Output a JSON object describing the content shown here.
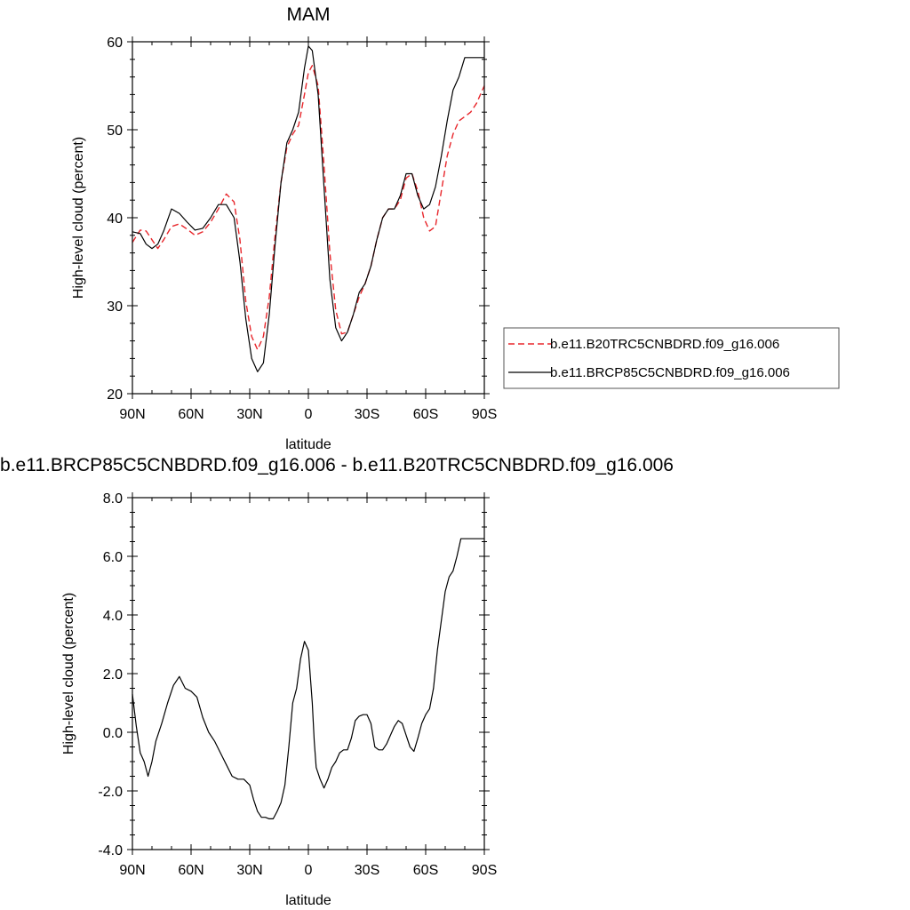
{
  "chart_data": [
    {
      "type": "line",
      "title": "MAM",
      "xlabel": "latitude",
      "ylabel": "High-level cloud (percent)",
      "xlim": [
        -90,
        90
      ],
      "ylim": [
        20,
        60
      ],
      "x_ticks": [
        {
          "value": -90,
          "label": "90N"
        },
        {
          "value": -60,
          "label": "60N"
        },
        {
          "value": -30,
          "label": "30N"
        },
        {
          "value": 0,
          "label": "0"
        },
        {
          "value": 30,
          "label": "30S"
        },
        {
          "value": 60,
          "label": "60S"
        },
        {
          "value": 90,
          "label": "90S"
        }
      ],
      "y_ticks": [
        {
          "value": 20,
          "label": "20"
        },
        {
          "value": 30,
          "label": "30"
        },
        {
          "value": 40,
          "label": "40"
        },
        {
          "value": 50,
          "label": "50"
        },
        {
          "value": 60,
          "label": "60"
        }
      ],
      "legend": "outside-right",
      "series": [
        {
          "name": "b.e11.B20TRC5CNBDRD.f09_g16.006",
          "color": "#e8262b",
          "style": "dashed",
          "x": [
            -90,
            -86,
            -83,
            -80,
            -77,
            -74,
            -70,
            -66,
            -62,
            -58,
            -54,
            -50,
            -46,
            -42,
            -38,
            -35,
            -32,
            -29,
            -26,
            -23,
            -20,
            -17,
            -14,
            -11,
            -8,
            -5,
            -2,
            0,
            2,
            5,
            8,
            11,
            14,
            17,
            20,
            23,
            26,
            29,
            32,
            35,
            38,
            41,
            44,
            47,
            50,
            53,
            56,
            59,
            62,
            65,
            68,
            71,
            74,
            77,
            80,
            83,
            86,
            88,
            90
          ],
          "y": [
            37.2,
            38.6,
            38.5,
            37.5,
            36.5,
            37.5,
            39.0,
            39.3,
            38.7,
            38.0,
            38.4,
            39.5,
            41.0,
            42.7,
            41.8,
            37.5,
            30.5,
            26.5,
            25.0,
            26.5,
            31.0,
            38.0,
            44.0,
            48.0,
            49.5,
            50.5,
            54.0,
            56.5,
            57.3,
            55.0,
            46.0,
            36.0,
            29.5,
            26.8,
            27.0,
            29.0,
            31.0,
            32.5,
            34.5,
            37.5,
            40.0,
            41.0,
            41.0,
            42.0,
            44.5,
            45.0,
            43.0,
            40.0,
            38.5,
            39.0,
            43.0,
            47.0,
            49.5,
            51.0,
            51.5,
            52,
            53,
            54,
            55
          ],
          "_note": ""
        },
        {
          "name": "b.e11.BRCP85C5CNBDRD.f09_g16.006",
          "color": "#000000",
          "style": "solid",
          "x": [
            -90,
            -86,
            -83,
            -80,
            -77,
            -74,
            -70,
            -66,
            -62,
            -58,
            -54,
            -50,
            -46,
            -42,
            -38,
            -35,
            -32,
            -29,
            -26,
            -23,
            -20,
            -17,
            -14,
            -11,
            -8,
            -5,
            -2,
            0,
            2,
            5,
            8,
            11,
            14,
            17,
            20,
            23,
            26,
            29,
            32,
            35,
            38,
            41,
            44,
            47,
            50,
            53,
            56,
            59,
            62,
            65,
            68,
            71,
            74,
            77,
            80,
            83,
            86,
            88,
            90
          ],
          "y": [
            38.4,
            38.2,
            37.0,
            36.5,
            37.0,
            38.5,
            41.0,
            40.5,
            39.5,
            38.6,
            38.8,
            40.0,
            41.5,
            41.5,
            40.0,
            35.0,
            28.5,
            24.0,
            22.5,
            23.5,
            29.0,
            37.0,
            44.0,
            48.5,
            50.0,
            52.0,
            57.0,
            59.5,
            59.0,
            54.0,
            43.5,
            33.0,
            27.5,
            26.0,
            27.0,
            29.0,
            31.5,
            32.5,
            34.5,
            37.5,
            40.0,
            41.0,
            41.0,
            42.5,
            45.0,
            45.0,
            42.5,
            41.0,
            41.5,
            43.5,
            47.0,
            51.0,
            54.5,
            56.0,
            58.2,
            58.2,
            58.2,
            58.2,
            58.2
          ]
        }
      ]
    },
    {
      "type": "line",
      "title": "b.e11.BRCP85C5CNBDRD.f09_g16.006 - b.e11.B20TRC5CNBDRD.f09_g16.006",
      "xlabel": "latitude",
      "ylabel": "High-level cloud (percent)",
      "xlim": [
        -90,
        90
      ],
      "ylim": [
        -4.0,
        8.0
      ],
      "x_ticks": [
        {
          "value": -90,
          "label": "90N"
        },
        {
          "value": -60,
          "label": "60N"
        },
        {
          "value": -30,
          "label": "30N"
        },
        {
          "value": 0,
          "label": "0"
        },
        {
          "value": 30,
          "label": "30S"
        },
        {
          "value": 60,
          "label": "60S"
        },
        {
          "value": 90,
          "label": "90S"
        }
      ],
      "y_ticks": [
        {
          "value": -4,
          "label": "-4.0"
        },
        {
          "value": -2,
          "label": "-2.0"
        },
        {
          "value": 0,
          "label": "0.0"
        },
        {
          "value": 2,
          "label": "2.0"
        },
        {
          "value": 4,
          "label": "4.0"
        },
        {
          "value": 6,
          "label": "6.0"
        },
        {
          "value": 8,
          "label": "8.0"
        }
      ],
      "series": [
        {
          "color": "#000000",
          "style": "solid",
          "x": [
            -90,
            -88,
            -86,
            -84,
            -82,
            -80,
            -78,
            -75,
            -72,
            -69,
            -66,
            -63,
            -60,
            -57,
            -54,
            -51,
            -48,
            -45,
            -42,
            -39,
            -36,
            -33,
            -30,
            -28,
            -26,
            -24,
            -22,
            -20,
            -18,
            -16,
            -14,
            -12,
            -10,
            -8,
            -6,
            -4,
            -2,
            0,
            2,
            3,
            4,
            6,
            8,
            10,
            12,
            14,
            16,
            18,
            20,
            22,
            24,
            26,
            28,
            30,
            32,
            34,
            36,
            38,
            40,
            42,
            44,
            46,
            48,
            50,
            52,
            54,
            56,
            58,
            60,
            62,
            64,
            66,
            68,
            70,
            72,
            74,
            76,
            78,
            80,
            82,
            84,
            86,
            88,
            90
          ],
          "y": [
            1.3,
            0.2,
            -0.7,
            -1.0,
            -1.5,
            -1.0,
            -0.3,
            0.3,
            1.0,
            1.6,
            1.9,
            1.5,
            1.4,
            1.2,
            0.5,
            0.0,
            -0.3,
            -0.7,
            -1.1,
            -1.5,
            -1.6,
            -1.6,
            -1.8,
            -2.3,
            -2.7,
            -2.9,
            -2.9,
            -2.95,
            -2.95,
            -2.7,
            -2.4,
            -1.8,
            -0.5,
            1.0,
            1.5,
            2.5,
            3.1,
            2.8,
            1.0,
            -0.3,
            -1.2,
            -1.6,
            -1.9,
            -1.6,
            -1.2,
            -1.0,
            -0.7,
            -0.6,
            -0.6,
            -0.2,
            0.4,
            0.55,
            0.6,
            0.6,
            0.3,
            -0.5,
            -0.6,
            -0.6,
            -0.4,
            -0.1,
            0.2,
            0.4,
            0.3,
            -0.1,
            -0.5,
            -0.65,
            -0.2,
            0.3,
            0.6,
            0.8,
            1.5,
            2.8,
            3.8,
            4.8,
            5.3,
            5.5,
            6.0,
            6.6,
            6.6,
            6.6,
            6.6,
            6.6,
            6.6,
            6.6
          ]
        }
      ]
    }
  ]
}
